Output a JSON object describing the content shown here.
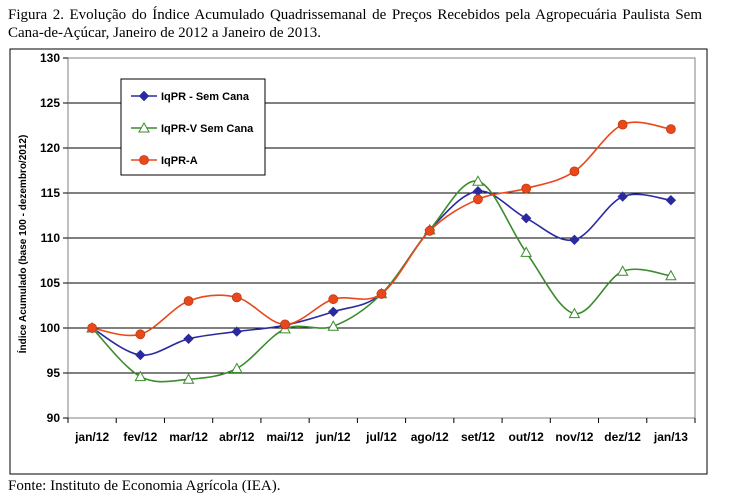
{
  "caption": "Figura 2. Evolução do Índice Acumulado Quadrissemanal de Preços Recebidos pela Agropecuária Paulista Sem Cana-de-Açúcar, Janeiro de 2012 a Janeiro de 2013.",
  "source": "Fonte: Instituto de Economia Agrícola (IEA).",
  "chart_data": {
    "type": "line",
    "title": "",
    "xlabel": "",
    "ylabel": "Índice Acumulado (base 100 - dezembro/2012)",
    "categories": [
      "jan/12",
      "fev/12",
      "mar/12",
      "abr/12",
      "mai/12",
      "jun/12",
      "jul/12",
      "ago/12",
      "set/12",
      "out/12",
      "nov/12",
      "dez/12",
      "jan/13"
    ],
    "ylim": [
      90,
      130
    ],
    "yticks": [
      90,
      95,
      100,
      105,
      110,
      115,
      120,
      125,
      130
    ],
    "grid": true,
    "legend_position": "top-left",
    "series": [
      {
        "name": "IqPR - Sem Cana",
        "color": "#2a2aa0",
        "marker": "diamond",
        "values": [
          100.0,
          97.0,
          98.8,
          99.6,
          100.3,
          101.8,
          103.8,
          110.9,
          115.2,
          112.2,
          109.8,
          114.6,
          114.2
        ]
      },
      {
        "name": "IqPR-V Sem Cana",
        "color": "#3c8a2e",
        "marker": "triangle",
        "values": [
          100.0,
          94.6,
          94.3,
          95.5,
          99.9,
          100.2,
          103.8,
          110.9,
          116.3,
          108.4,
          101.6,
          106.3,
          105.8
        ]
      },
      {
        "name": "IqPR-A",
        "color": "#e8481c",
        "marker": "circle",
        "values": [
          100.0,
          99.3,
          103.0,
          103.4,
          100.4,
          103.2,
          103.8,
          110.8,
          114.3,
          115.5,
          117.4,
          122.6,
          122.1
        ]
      }
    ]
  }
}
